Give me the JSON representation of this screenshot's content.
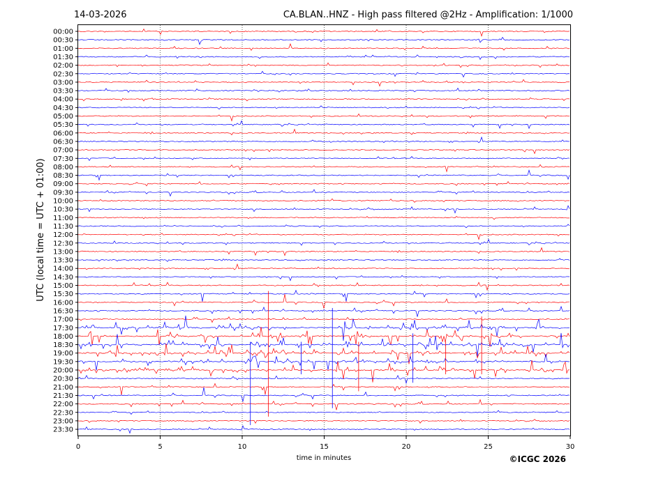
{
  "header": {
    "date": "14-03-2026",
    "title": "CA.BLAN..HNZ - High pass filtered @2Hz - Amplification: 1/1000"
  },
  "footer": {
    "copyright": "©ICGC 2026"
  },
  "colors": {
    "trace_a": "#ff0000",
    "trace_b": "#0000ff",
    "grid": "#000000",
    "axis": "#000000",
    "background": "#ffffff"
  },
  "chart_data": {
    "type": "line",
    "title": "CA.BLAN..HNZ - High pass filtered @2Hz - Amplification: 1/1000",
    "xlabel": "time in minutes",
    "ylabel": "UTC (local time = UTC + 01:00)",
    "xlim": [
      0,
      30
    ],
    "x_ticks": [
      "0",
      "5",
      "10",
      "15",
      "20",
      "25",
      "30"
    ],
    "x_tick_values": [
      0,
      5,
      10,
      15,
      20,
      25,
      30
    ],
    "grid": "vertical dotted lines at 5-minute intervals",
    "rows": [
      "00:00",
      "00:30",
      "01:00",
      "01:30",
      "02:00",
      "02:30",
      "03:00",
      "03:30",
      "04:00",
      "04:30",
      "05:00",
      "05:30",
      "06:00",
      "06:30",
      "07:00",
      "07:30",
      "08:00",
      "08:30",
      "09:00",
      "09:30",
      "10:00",
      "10:30",
      "11:00",
      "11:30",
      "12:00",
      "12:30",
      "13:00",
      "13:30",
      "14:00",
      "14:30",
      "15:00",
      "15:30",
      "16:00",
      "16:30",
      "17:00",
      "17:30",
      "18:00",
      "18:30",
      "19:00",
      "19:30",
      "20:00",
      "20:30",
      "21:00",
      "21:30",
      "22:00",
      "22:30",
      "23:00",
      "23:30"
    ],
    "row_colors": "alternating red (even rows) and blue (odd rows)",
    "high_activity_window": [
      "17:30",
      "20:30"
    ]
  }
}
